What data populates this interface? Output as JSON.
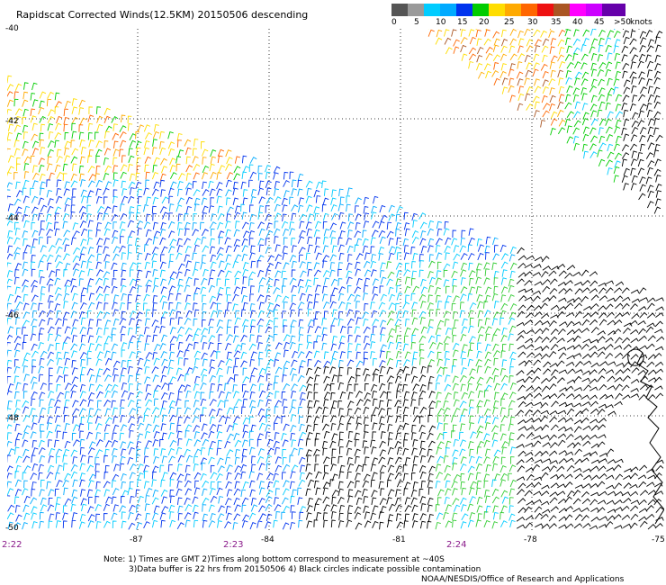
{
  "title": "Rapidscat Corrected Winds(12.5KM) 20150506 descending",
  "colorbar": {
    "unit": "knots",
    "labels": [
      "0",
      "5",
      "10",
      "15",
      "20",
      "25",
      "30",
      "35",
      "40",
      "45",
      ">50"
    ],
    "colors": [
      "#555555",
      "#9a9a9a",
      "#00ccff",
      "#00aaff",
      "#0033ee",
      "#00cc00",
      "#ffdd00",
      "#ffaa00",
      "#ff6600",
      "#ee1111",
      "#aa5522",
      "#ff00ff",
      "#cc00ff",
      "#6600aa"
    ]
  },
  "axes": {
    "lat_labels": [
      "-40",
      "-42",
      "-44",
      "-46",
      "-48",
      "-50"
    ],
    "lon_labels": [
      "-87",
      "-84",
      "-81",
      "-78",
      "-75"
    ],
    "lon_range": [
      -90,
      -75
    ],
    "lat_range": [
      -50,
      -40
    ]
  },
  "times": [
    "2:22",
    "2:23",
    "2:24"
  ],
  "notes": {
    "line1": "Note: 1) Times are GMT 2)Times along bottom correspond to measurement at ~40S",
    "line2": "3)Data buffer is 22 hrs from 20150506 4) Black circles indicate possible contamination"
  },
  "credit": "NOAA/NESDIS/Office of Research and Applications"
}
